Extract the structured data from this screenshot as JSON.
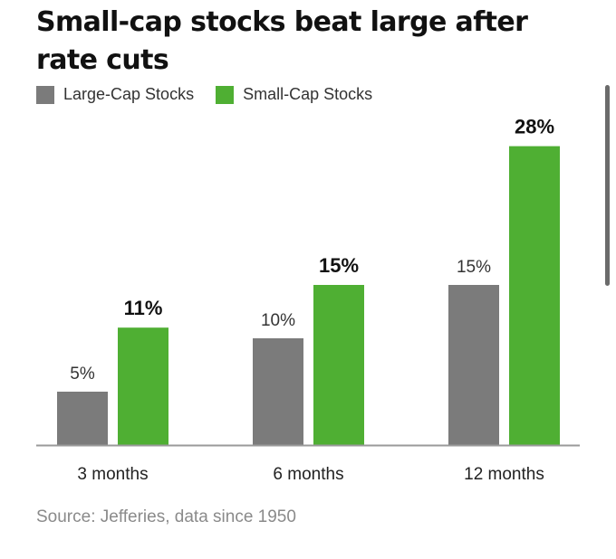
{
  "title": "Small-cap stocks beat large after rate cuts",
  "source": "Source:  Jefferies, data since 1950",
  "colors": {
    "large_cap": "#7b7b7b",
    "small_cap": "#4faf33",
    "axis": "#9a9a9a"
  },
  "chart_data": {
    "type": "bar",
    "categories": [
      "3 months",
      "6 months",
      "12 months"
    ],
    "series": [
      {
        "name": "Large-Cap Stocks",
        "values": [
          5,
          10,
          15
        ],
        "labels": [
          "5%",
          "10%",
          "15%"
        ]
      },
      {
        "name": "Small-Cap Stocks",
        "values": [
          11,
          15,
          28
        ],
        "labels": [
          "11%",
          "15%",
          "28%"
        ]
      }
    ],
    "ylim": [
      0,
      28
    ],
    "grid": false,
    "legend_position": "top-left",
    "unit": "%"
  }
}
